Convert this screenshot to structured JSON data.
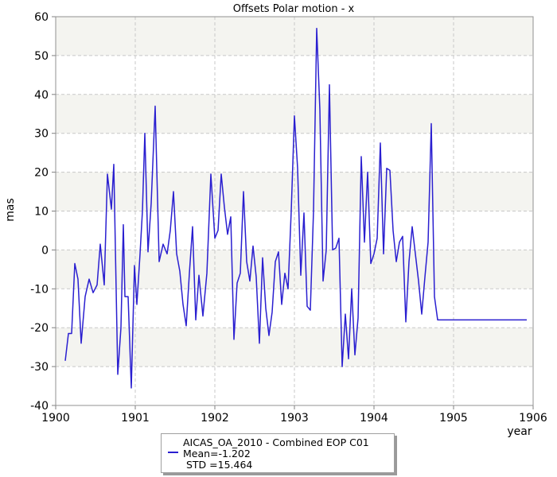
{
  "chart_data": {
    "type": "line",
    "title": "Offsets Polar motion - x",
    "xlabel": "year",
    "ylabel": "mas",
    "xlim": [
      1900,
      1906
    ],
    "ylim": [
      -40,
      60
    ],
    "xticks": [
      1900,
      1901,
      1902,
      1903,
      1904,
      1905,
      1906
    ],
    "yticks": [
      -40,
      -30,
      -20,
      -10,
      0,
      10,
      20,
      30,
      40,
      50,
      60
    ],
    "grid": true,
    "legend_position": "bottom-center",
    "series": [
      {
        "name": "AICAS_OA_2010 - Combined EOP C01",
        "color": "#2a1fd0",
        "x": [
          1900.12,
          1900.16,
          1900.2,
          1900.24,
          1900.28,
          1900.32,
          1900.37,
          1900.42,
          1900.47,
          1900.52,
          1900.56,
          1900.61,
          1900.65,
          1900.7,
          1900.73,
          1900.78,
          1900.82,
          1900.85,
          1900.87,
          1900.91,
          1900.95,
          1900.99,
          1901.02,
          1901.06,
          1901.09,
          1901.12,
          1901.16,
          1901.2,
          1901.25,
          1901.3,
          1901.35,
          1901.4,
          1901.44,
          1901.48,
          1901.52,
          1901.56,
          1901.6,
          1901.64,
          1901.68,
          1901.72,
          1901.76,
          1901.8,
          1901.85,
          1901.9,
          1901.95,
          1902.0,
          1902.04,
          1902.08,
          1902.12,
          1902.16,
          1902.2,
          1902.24,
          1902.28,
          1902.32,
          1902.36,
          1902.4,
          1902.44,
          1902.48,
          1902.52,
          1902.56,
          1902.6,
          1902.64,
          1902.68,
          1902.72,
          1902.76,
          1902.8,
          1902.84,
          1902.88,
          1902.92,
          1902.96,
          1903.0,
          1903.04,
          1903.08,
          1903.12,
          1903.16,
          1903.2,
          1903.24,
          1903.28,
          1903.32,
          1903.36,
          1903.4,
          1903.44,
          1903.48,
          1903.52,
          1903.56,
          1903.6,
          1903.64,
          1903.68,
          1903.72,
          1903.76,
          1903.8,
          1903.84,
          1903.88,
          1903.92,
          1903.96,
          1904.0,
          1904.04,
          1904.08,
          1904.12,
          1904.16,
          1904.2,
          1904.24,
          1904.28,
          1904.32,
          1904.36,
          1904.4,
          1904.44,
          1904.48,
          1904.52,
          1904.56,
          1904.6,
          1904.64,
          1904.68,
          1904.72,
          1904.76,
          1904.8,
          1904.84,
          1904.88,
          1904.92,
          1904.96,
          1905.0,
          1905.04,
          1905.08,
          1905.12,
          1905.16,
          1905.2,
          1905.24,
          1905.28,
          1905.32,
          1905.36,
          1905.4,
          1905.44,
          1905.48,
          1905.52,
          1905.56,
          1905.6,
          1905.64,
          1905.68,
          1905.72,
          1905.76,
          1905.8,
          1905.84,
          1905.88,
          1905.92
        ],
        "y": [
          -28.5,
          -21.5,
          -21.5,
          -3.5,
          -7.5,
          -24,
          -12,
          -7.5,
          -11,
          -9,
          1.5,
          -9,
          19.5,
          10.5,
          22,
          -32,
          -20,
          6.5,
          -12,
          -12,
          -35.5,
          -4,
          -14,
          -1,
          10,
          30,
          -0.5,
          12,
          37,
          -3,
          1.5,
          -1,
          5,
          15,
          -1,
          -5.5,
          -14,
          -19.5,
          -6,
          6,
          -18,
          -6.5,
          -17,
          -6,
          19.5,
          3,
          5,
          19.5,
          11,
          4,
          8.5,
          -23,
          -8.5,
          -6,
          15,
          -3,
          -8,
          1,
          -7,
          -24,
          -2,
          -15,
          -22,
          -16,
          -3,
          -0.5,
          -14,
          -6,
          -10,
          10,
          34.5,
          21,
          -6.5,
          9.5,
          -14.5,
          -15.5,
          10,
          57,
          36,
          -8,
          0,
          42.5,
          0,
          0.5,
          3,
          -30,
          -16.5,
          -28,
          -10,
          -27,
          -17.5,
          24,
          2,
          20,
          -3.5,
          -1,
          3,
          27.5,
          -1,
          21,
          20.5,
          5,
          -3,
          2,
          3.5,
          -18.5,
          -3,
          6,
          -1,
          -8,
          -16.5,
          -7,
          2,
          32.5,
          -12,
          -18,
          -18,
          -18,
          -18,
          -18,
          -18,
          -18,
          -18,
          -18,
          -18,
          -18,
          -18,
          -18,
          -18,
          -18,
          -18,
          -18,
          -18,
          -18,
          -18,
          -18,
          -18,
          -18,
          -18,
          -18,
          -18,
          -18,
          -18,
          -18
        ]
      }
    ]
  },
  "legend": {
    "line1": "AICAS_OA_2010 - Combined EOP C01",
    "line2": "Mean=-1.202",
    "line3": " STD =15.464"
  }
}
